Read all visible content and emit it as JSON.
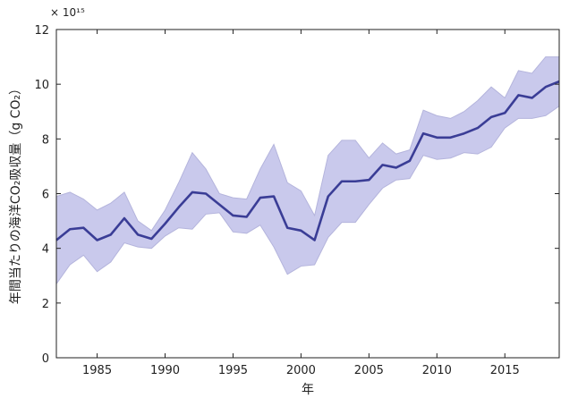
{
  "chart_data": {
    "type": "area",
    "xlabel": "年",
    "ylabel": "年間当たりの海洋CO₂吸収量（g CO₂）",
    "y_multiplier": "× 10¹⁵",
    "xlim": [
      1982,
      2019
    ],
    "ylim": [
      0,
      12
    ],
    "x_ticks": [
      1985,
      1990,
      1995,
      2000,
      2005,
      2010,
      2015
    ],
    "y_ticks": [
      0,
      2,
      4,
      6,
      8,
      10,
      12
    ],
    "grid": false,
    "colors": {
      "line": "#3a3d96",
      "band_fill": "#c9c9ec",
      "band_edge": "#b4b4dc",
      "axes": "#222222"
    },
    "x": [
      1982,
      1983,
      1984,
      1985,
      1986,
      1987,
      1988,
      1989,
      1990,
      1991,
      1992,
      1993,
      1994,
      1995,
      1996,
      1997,
      1998,
      1999,
      2000,
      2001,
      2002,
      2003,
      2004,
      2005,
      2006,
      2007,
      2008,
      2009,
      2010,
      2011,
      2012,
      2013,
      2014,
      2015,
      2016,
      2017,
      2018,
      2019
    ],
    "series": [
      {
        "role": "mean",
        "values": [
          4.3,
          4.7,
          4.75,
          4.3,
          4.5,
          5.1,
          4.5,
          4.35,
          4.9,
          5.5,
          6.05,
          6.0,
          5.6,
          5.2,
          5.15,
          5.85,
          5.9,
          4.75,
          4.65,
          4.3,
          5.9,
          6.45,
          6.45,
          6.5,
          7.05,
          6.95,
          7.2,
          8.2,
          8.05,
          8.05,
          8.2,
          8.4,
          8.8,
          8.95,
          9.6,
          9.5,
          9.9,
          10.1
        ]
      },
      {
        "role": "upper",
        "values": [
          5.9,
          6.05,
          5.8,
          5.4,
          5.65,
          6.05,
          5.0,
          4.65,
          5.4,
          6.4,
          7.5,
          6.9,
          6.0,
          5.85,
          5.8,
          6.9,
          7.8,
          6.4,
          6.1,
          5.2,
          7.4,
          7.95,
          7.95,
          7.3,
          7.85,
          7.45,
          7.6,
          9.05,
          8.85,
          8.75,
          9.0,
          9.4,
          9.9,
          9.5,
          10.5,
          10.4,
          11.0,
          11.0
        ]
      },
      {
        "role": "lower",
        "values": [
          2.7,
          3.4,
          3.75,
          3.15,
          3.5,
          4.2,
          4.05,
          4.0,
          4.45,
          4.75,
          4.7,
          5.25,
          5.3,
          4.6,
          4.55,
          4.85,
          4.05,
          3.05,
          3.35,
          3.4,
          4.4,
          4.95,
          4.95,
          5.6,
          6.2,
          6.5,
          6.55,
          7.4,
          7.25,
          7.3,
          7.5,
          7.45,
          7.7,
          8.4,
          8.75,
          8.75,
          8.85,
          9.2
        ]
      }
    ]
  }
}
